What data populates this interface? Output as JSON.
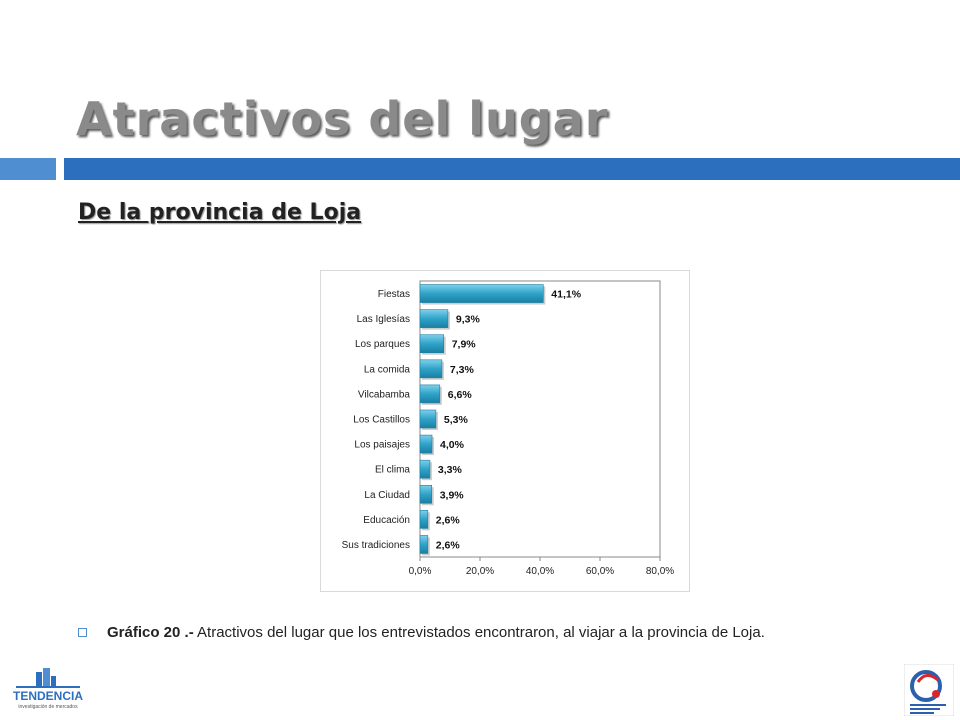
{
  "slide": {
    "title": "Atractivos del lugar",
    "subtitle": "De la provincia de Loja",
    "caption_bold": "Gráfico 20 .-",
    "caption_text": " Atractivos del lugar que los entrevistados encontraron, al viajar a la provincia de Loja."
  },
  "logos": {
    "left_text": "TENDENCIA",
    "left_subtext": "investigación de mercados"
  },
  "colors": {
    "title": "#8a8a8a",
    "accent_dark": "#2c6fbe",
    "accent_light": "#4f8fd1",
    "bar": "#2fa3c9"
  },
  "chart_data": {
    "type": "bar",
    "orientation": "horizontal",
    "categories": [
      "Fiestas",
      "Las Iglesías",
      "Los parques",
      "La comida",
      "Vilcabamba",
      "Los Castillos",
      "Los paisajes",
      "El clima",
      "La Ciudad",
      "Educación",
      "Sus tradiciones"
    ],
    "values": [
      41.1,
      9.3,
      7.9,
      7.3,
      6.6,
      5.3,
      4.0,
      3.3,
      3.9,
      2.6,
      2.6
    ],
    "value_labels": [
      "41,1%",
      "9,3%",
      "7,9%",
      "7,3%",
      "6,6%",
      "5,3%",
      "4,0%",
      "3,3%",
      "3,9%",
      "2,6%",
      "2,6%"
    ],
    "xlim": [
      0,
      80
    ],
    "xticks": [
      0,
      20,
      40,
      60,
      80
    ],
    "xtick_labels": [
      "0,0%",
      "20,0%",
      "40,0%",
      "60,0%",
      "80,0%"
    ],
    "grid": false,
    "legend": "none"
  }
}
